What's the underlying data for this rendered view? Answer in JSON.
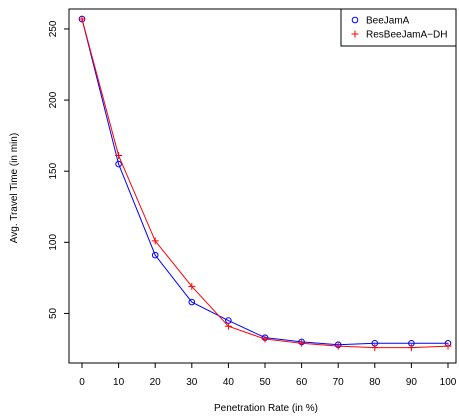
{
  "chart_data": {
    "type": "line",
    "xlabel": "Penetration Rate (in %)",
    "ylabel": "Avg. Travel Time (in min)",
    "x": [
      0,
      10,
      20,
      30,
      40,
      50,
      60,
      70,
      80,
      90,
      100
    ],
    "xticks": [
      0,
      10,
      20,
      30,
      40,
      50,
      60,
      70,
      80,
      90,
      100
    ],
    "yticks": [
      50,
      100,
      150,
      200,
      250
    ],
    "xlim": [
      0,
      100
    ],
    "ylim": [
      25,
      257
    ],
    "legend_position": "top-right",
    "grid": false,
    "series": [
      {
        "name": "BeeJamA",
        "color": "#0000ff",
        "marker": "circle",
        "values": [
          257,
          155,
          91,
          58,
          45,
          33,
          30,
          28,
          29,
          29,
          29
        ]
      },
      {
        "name": "ResBeeJamA−DH",
        "color": "#ff0000",
        "marker": "plus",
        "values": [
          257,
          161,
          101,
          69,
          41,
          32,
          29,
          27,
          26,
          26,
          27
        ]
      }
    ]
  }
}
